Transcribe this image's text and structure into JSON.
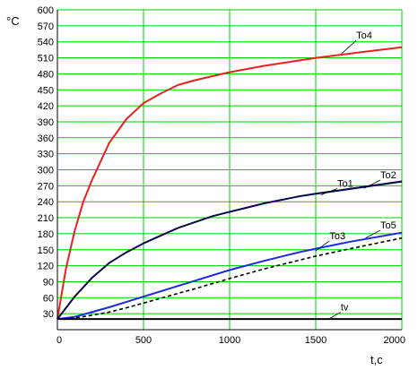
{
  "chart_data": {
    "type": "line",
    "ylabel": "°C",
    "xlabel": "t,c",
    "xlim": [
      0,
      2000
    ],
    "ylim": [
      0,
      600
    ],
    "x_ticks": [
      0,
      500,
      1000,
      1500,
      2000
    ],
    "y_ticks": [
      30,
      60,
      90,
      120,
      150,
      180,
      210,
      240,
      270,
      300,
      330,
      360,
      390,
      420,
      450,
      480,
      510,
      540,
      570,
      600
    ],
    "grid": true,
    "colors": {
      "grid": "#00cc00",
      "To4": "#e8231e",
      "To1": "#0a0a4a",
      "To2": "#0a0a4a",
      "To3": "#1a2ae0",
      "To5": "#000000",
      "tv": "#000000"
    },
    "series": [
      {
        "name": "To4",
        "x": [
          0,
          50,
          100,
          150,
          200,
          300,
          400,
          500,
          600,
          700,
          800,
          1000,
          1200,
          1500,
          1800,
          2000
        ],
        "values": [
          20,
          115,
          185,
          240,
          280,
          350,
          395,
          425,
          443,
          459,
          468,
          483,
          495,
          510,
          522,
          530
        ]
      },
      {
        "name": "To1",
        "x": [
          0,
          100,
          200,
          300,
          400,
          500,
          700,
          900,
          1000,
          1200,
          1400,
          1500,
          1700,
          2000
        ],
        "values": [
          20,
          62,
          97,
          125,
          145,
          162,
          191,
          213,
          221,
          237,
          250,
          255,
          264,
          278
        ]
      },
      {
        "name": "To2",
        "x": [
          0,
          100,
          200,
          300,
          400,
          500,
          700,
          900,
          1000,
          1200,
          1400,
          1500,
          1700,
          2000
        ],
        "values": [
          20,
          62,
          97,
          125,
          145,
          162,
          191,
          213,
          221,
          237,
          250,
          256,
          265,
          279
        ]
      },
      {
        "name": "To3",
        "x": [
          0,
          100,
          200,
          300,
          400,
          500,
          600,
          700,
          800,
          1000,
          1200,
          1400,
          1500,
          1700,
          2000
        ],
        "values": [
          20,
          24,
          33,
          42,
          52,
          62,
          72,
          82,
          92,
          112,
          129,
          145,
          152,
          165,
          182
        ]
      },
      {
        "name": "To5",
        "x": [
          0,
          100,
          200,
          300,
          400,
          500,
          600,
          700,
          800,
          1000,
          1200,
          1400,
          1500,
          1700,
          2000
        ],
        "values": [
          20,
          22,
          27,
          33,
          41,
          50,
          59,
          68,
          77,
          96,
          114,
          130,
          138,
          152,
          172
        ]
      },
      {
        "name": "tv",
        "x": [
          0,
          2000
        ],
        "values": [
          20,
          20
        ]
      }
    ]
  }
}
